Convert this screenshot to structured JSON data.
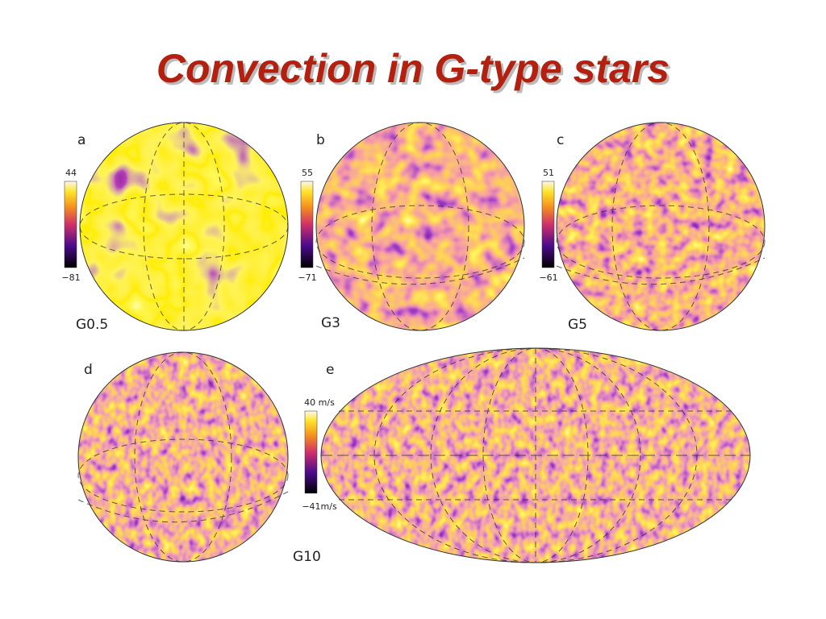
{
  "header": {
    "title": "Convection in G-type stars"
  },
  "panels": [
    {
      "letter": "a",
      "star": "G0.5",
      "colorbar_max": "44",
      "colorbar_min": "−81"
    },
    {
      "letter": "b",
      "star": "G3",
      "colorbar_max": "55",
      "colorbar_min": "−71"
    },
    {
      "letter": "c",
      "star": "G5",
      "colorbar_max": "51",
      "colorbar_min": "−61"
    },
    {
      "letter": "d"
    },
    {
      "letter": "e",
      "star": "G10",
      "colorbar_max": "40 m/s",
      "colorbar_min": "−41m/s"
    }
  ]
}
